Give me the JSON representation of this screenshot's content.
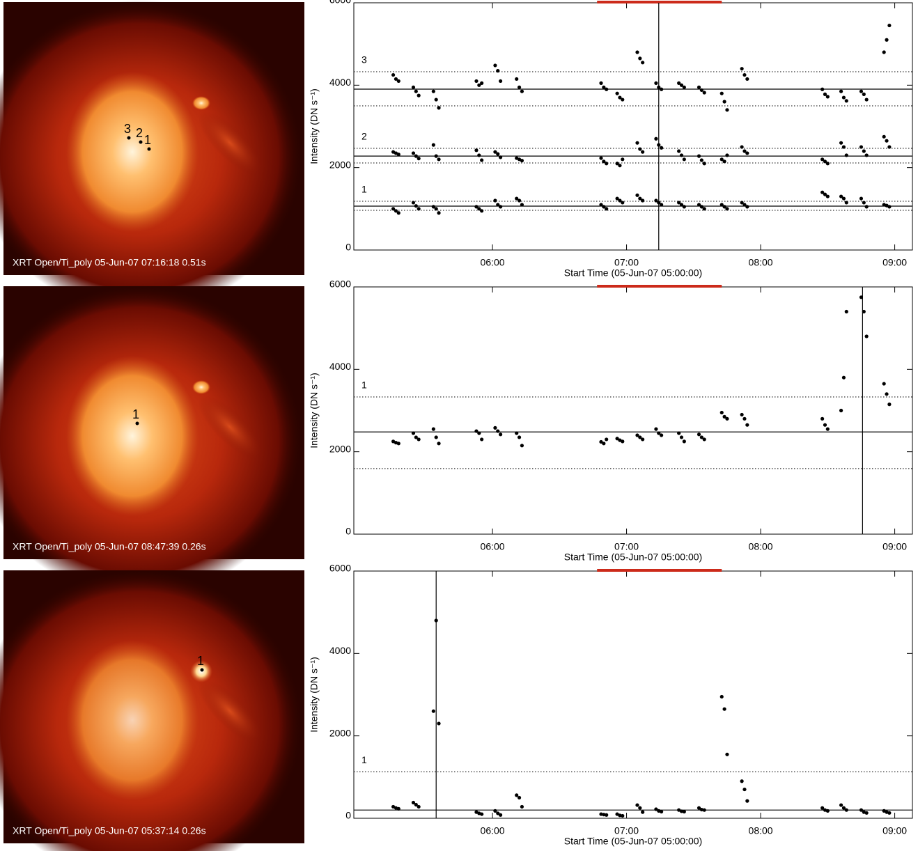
{
  "chart_data": [
    {
      "type": "scatter",
      "image_caption": "XRT Open/Ti_poly 05-Jun-07 07:16:18 0.51s",
      "image_labels": [
        "3",
        "2",
        "1"
      ],
      "xlabel": "Start Time (05-Jun-07 05:00:00)",
      "ylabel": "Intensity (DN s⁻¹)",
      "xlim": [
        -0.034,
        4.132
      ],
      "ylim": [
        0,
        6000
      ],
      "xticks": [
        {
          "value": 1,
          "label": "06:00"
        },
        {
          "value": 2,
          "label": "07:00"
        },
        {
          "value": 3,
          "label": "08:00"
        },
        {
          "value": 4,
          "label": "09:00"
        }
      ],
      "yticks": [
        0,
        2000,
        4000,
        6000
      ],
      "cursor_x": 2.24,
      "highlight_x": [
        1.78,
        2.71
      ],
      "highlight_color": "#cc2a1a",
      "x": [
        0.26,
        0.28,
        0.3,
        0.41,
        0.43,
        0.45,
        0.56,
        0.58,
        0.6,
        0.88,
        0.9,
        0.92,
        1.02,
        1.04,
        1.06,
        1.18,
        1.2,
        1.22,
        1.81,
        1.83,
        1.85,
        1.93,
        1.95,
        1.97,
        2.08,
        2.1,
        2.12,
        2.22,
        2.24,
        2.26,
        2.39,
        2.41,
        2.43,
        2.54,
        2.56,
        2.58,
        2.71,
        2.73,
        2.75,
        2.86,
        2.88,
        2.9,
        3.46,
        3.48,
        3.5,
        3.6,
        3.62,
        3.64,
        3.75,
        3.77,
        3.79,
        3.92,
        3.94,
        3.96
      ],
      "series": [
        {
          "name": "1",
          "color": "#000000",
          "mean": 1065,
          "upper": 1183,
          "lower": 963,
          "values": [
            1000,
            950,
            900,
            1150,
            1070,
            1000,
            1050,
            1000,
            900,
            1050,
            1000,
            950,
            1200,
            1100,
            1050,
            1250,
            1200,
            1100,
            1100,
            1050,
            1000,
            1250,
            1200,
            1150,
            1330,
            1250,
            1200,
            1200,
            1150,
            1100,
            1150,
            1100,
            1050,
            1100,
            1050,
            1000,
            1100,
            1050,
            1000,
            1150,
            1100,
            1050,
            1400,
            1350,
            1300,
            1300,
            1250,
            1150,
            1250,
            1150,
            1050,
            1100,
            1080,
            1050
          ]
        },
        {
          "name": "2",
          "color": "#000000",
          "mean": 2280,
          "upper": 2467,
          "lower": 2112,
          "values": [
            2380,
            2350,
            2320,
            2350,
            2280,
            2220,
            2550,
            2280,
            2200,
            2420,
            2300,
            2180,
            2380,
            2330,
            2250,
            2230,
            2200,
            2170,
            2230,
            2150,
            2100,
            2100,
            2050,
            2200,
            2600,
            2450,
            2380,
            2700,
            2550,
            2480,
            2400,
            2300,
            2200,
            2280,
            2180,
            2100,
            2200,
            2150,
            2300,
            2500,
            2400,
            2350,
            2200,
            2150,
            2100,
            2600,
            2500,
            2300,
            2500,
            2400,
            2300,
            2750,
            2650,
            2500
          ]
        },
        {
          "name": "3",
          "color": "#000000",
          "mean": 3904,
          "upper": 4326,
          "lower": 3498,
          "values": [
            4250,
            4150,
            4100,
            3950,
            3850,
            3750,
            3850,
            3650,
            3450,
            4100,
            4000,
            4050,
            4480,
            4350,
            4100,
            4150,
            3950,
            3850,
            4050,
            3950,
            3900,
            3800,
            3700,
            3650,
            4800,
            4650,
            4550,
            4050,
            3950,
            3900,
            4050,
            4000,
            3950,
            3950,
            3880,
            3820,
            3800,
            3600,
            3400,
            4400,
            4250,
            4150,
            3900,
            3780,
            3720,
            3850,
            3700,
            3620,
            3850,
            3780,
            3650,
            4800,
            5100,
            5450
          ]
        }
      ]
    },
    {
      "type": "scatter",
      "image_caption": "XRT Open/Ti_poly 05-Jun-07 08:47:39 0.26s",
      "image_labels": [
        "1"
      ],
      "xlabel": "Start Time (05-Jun-07 05:00:00)",
      "ylabel": "Intensity (DN s⁻¹)",
      "xlim": [
        -0.034,
        4.132
      ],
      "ylim": [
        0,
        6000
      ],
      "xticks": [
        {
          "value": 1,
          "label": "06:00"
        },
        {
          "value": 2,
          "label": "07:00"
        },
        {
          "value": 3,
          "label": "08:00"
        },
        {
          "value": 4,
          "label": "09:00"
        }
      ],
      "yticks": [
        0,
        2000,
        4000,
        6000
      ],
      "cursor_x": 3.76,
      "highlight_x": [
        1.78,
        2.71
      ],
      "highlight_color": "#cc2a1a",
      "x": [
        0.26,
        0.28,
        0.3,
        0.41,
        0.43,
        0.45,
        0.56,
        0.58,
        0.6,
        0.88,
        0.9,
        0.92,
        1.02,
        1.04,
        1.06,
        1.18,
        1.2,
        1.22,
        1.81,
        1.83,
        1.85,
        1.93,
        1.95,
        1.97,
        2.08,
        2.1,
        2.12,
        2.22,
        2.24,
        2.26,
        2.39,
        2.41,
        2.43,
        2.54,
        2.56,
        2.58,
        2.71,
        2.73,
        2.75,
        2.86,
        2.88,
        2.9,
        3.46,
        3.48,
        3.5,
        3.6,
        3.62,
        3.64,
        3.75,
        3.77,
        3.79,
        3.92,
        3.94,
        3.96
      ],
      "series": [
        {
          "name": "1",
          "color": "#000000",
          "mean": 2480,
          "upper": 3330,
          "lower": 1590,
          "values": [
            2250,
            2220,
            2200,
            2450,
            2350,
            2300,
            2550,
            2350,
            2200,
            2500,
            2450,
            2300,
            2580,
            2500,
            2420,
            2450,
            2350,
            2150,
            2240,
            2200,
            2300,
            2320,
            2280,
            2250,
            2400,
            2350,
            2300,
            2550,
            2450,
            2400,
            2450,
            2350,
            2250,
            2420,
            2350,
            2300,
            2950,
            2850,
            2800,
            2900,
            2800,
            2650,
            2800,
            2650,
            2550,
            3000,
            3800,
            5400,
            5750,
            5400,
            4800,
            3650,
            3400,
            3150
          ]
        }
      ]
    },
    {
      "type": "scatter",
      "image_caption": "XRT Open/Ti_poly 05-Jun-07 05:37:14 0.26s",
      "image_labels": [
        "1"
      ],
      "xlabel": "Start Time (05-Jun-07 05:00:00)",
      "ylabel": "Intensity (DN s⁻¹)",
      "xlim": [
        -0.034,
        4.132
      ],
      "ylim": [
        0,
        6000
      ],
      "xticks": [
        {
          "value": 1,
          "label": "06:00"
        },
        {
          "value": 2,
          "label": "07:00"
        },
        {
          "value": 3,
          "label": "08:00"
        },
        {
          "value": 4,
          "label": "09:00"
        }
      ],
      "yticks": [
        0,
        2000,
        4000,
        6000
      ],
      "cursor_x": 0.58,
      "highlight_x": [
        1.78,
        2.71
      ],
      "highlight_color": "#cc2a1a",
      "x": [
        0.26,
        0.28,
        0.3,
        0.41,
        0.43,
        0.45,
        0.56,
        0.58,
        0.6,
        0.88,
        0.9,
        0.92,
        1.02,
        1.04,
        1.06,
        1.18,
        1.2,
        1.22,
        1.81,
        1.83,
        1.85,
        1.93,
        1.95,
        1.97,
        2.08,
        2.1,
        2.12,
        2.22,
        2.24,
        2.26,
        2.39,
        2.41,
        2.43,
        2.54,
        2.56,
        2.58,
        2.71,
        2.73,
        2.75,
        2.86,
        2.88,
        2.9,
        3.46,
        3.48,
        3.5,
        3.6,
        3.62,
        3.64,
        3.75,
        3.77,
        3.79,
        3.92,
        3.94,
        3.96
      ],
      "series": [
        {
          "name": "1",
          "color": "#000000",
          "mean": 200,
          "upper": 1130,
          "values": [
            280,
            250,
            230,
            380,
            330,
            280,
            2600,
            4800,
            2300,
            150,
            120,
            100,
            180,
            120,
            80,
            560,
            500,
            280,
            100,
            90,
            80,
            100,
            70,
            60,
            320,
            250,
            150,
            220,
            180,
            160,
            200,
            170,
            160,
            250,
            210,
            200,
            2950,
            2650,
            1550,
            900,
            700,
            420,
            250,
            200,
            180,
            320,
            250,
            200,
            200,
            150,
            130,
            180,
            150,
            130
          ]
        }
      ]
    }
  ]
}
